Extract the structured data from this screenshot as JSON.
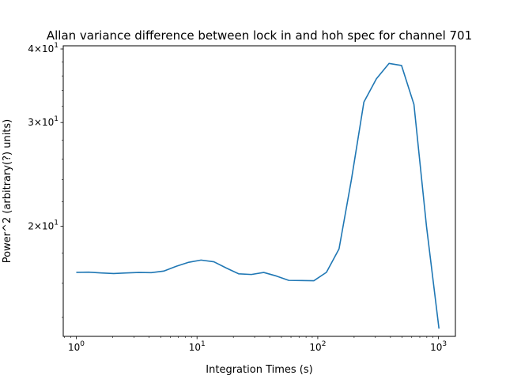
{
  "chart_data": {
    "type": "line",
    "title": "Allan variance difference between lock in and hoh spec for channel 701",
    "xlabel": "Integration Times (s)",
    "ylabel": "Power^2 (arbitrary(?) units)",
    "xscale": "log",
    "yscale": "log",
    "xlim": [
      0.78,
      1380
    ],
    "ylim": [
      13.0,
      40.5
    ],
    "x_ticks": [
      {
        "value": 1,
        "base": "10",
        "exp": "0"
      },
      {
        "value": 10,
        "base": "10",
        "exp": "1"
      },
      {
        "value": 100,
        "base": "10",
        "exp": "2"
      },
      {
        "value": 1000,
        "base": "10",
        "exp": "3"
      }
    ],
    "y_ticks": [
      {
        "value": 20,
        "mant": "2",
        "base": "10",
        "exp": "1"
      },
      {
        "value": 30,
        "mant": "3",
        "base": "10",
        "exp": "1"
      },
      {
        "value": 40,
        "mant": "4",
        "base": "10",
        "exp": "1"
      }
    ],
    "line_color": "#1f77b4",
    "series": [
      {
        "x": [
          1,
          1.27,
          1.61,
          2.04,
          2.59,
          3.29,
          4.18,
          5.3,
          6.73,
          8.54,
          10.8,
          13.8,
          17.5,
          22.2,
          28.2,
          35.7,
          45.4,
          57.6,
          73.1,
          92.8,
          118,
          150,
          190,
          241,
          306,
          389,
          494,
          626,
          795,
          1009
        ],
        "y": [
          16.7,
          16.71,
          16.66,
          16.62,
          16.66,
          16.69,
          16.68,
          16.78,
          17.1,
          17.37,
          17.52,
          17.4,
          16.98,
          16.6,
          16.56,
          16.69,
          16.46,
          16.18,
          16.17,
          16.16,
          16.7,
          18.3,
          24.0,
          32.5,
          35.6,
          37.8,
          37.5,
          32.2,
          20.0,
          13.4
        ]
      }
    ]
  }
}
